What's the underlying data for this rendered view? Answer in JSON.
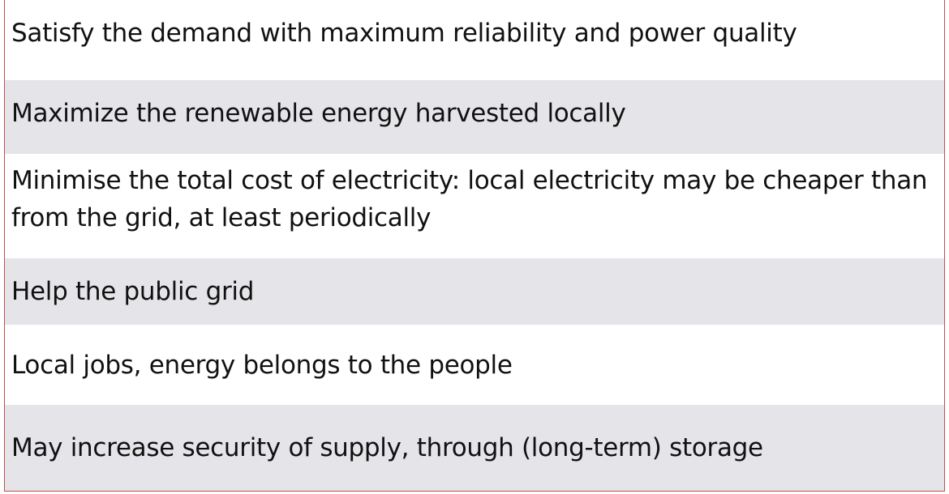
{
  "rows": [
    {
      "text": "Satisfy the demand with maximum reliability and power quality"
    },
    {
      "text": "Maximize the renewable energy harvested locally"
    },
    {
      "text": "Minimise the total cost of electricity: local electricity may be cheaper than from the grid, at least periodically"
    },
    {
      "text": "Help the public grid"
    },
    {
      "text": "Local jobs, energy belongs to the people"
    },
    {
      "text": "May increase security of supply, through (long-term) storage"
    }
  ],
  "colors": {
    "band_white": "#ffffff",
    "band_grey": "#e5e5e9",
    "border": "#c0504d",
    "text": "#111111"
  }
}
